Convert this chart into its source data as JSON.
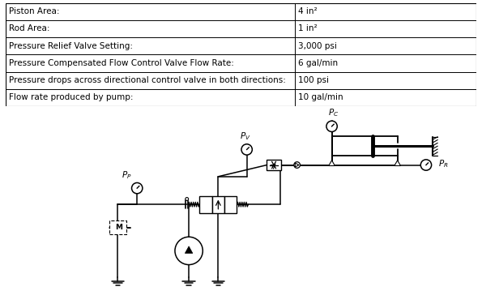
{
  "table_rows": [
    [
      "Piston Area:",
      "4 in²"
    ],
    [
      "Rod Area:",
      "1 in²"
    ],
    [
      "Pressure Relief Valve Setting:",
      "3,000 psi"
    ],
    [
      "Pressure Compensated Flow Control Valve Flow Rate:",
      "6 gal/min"
    ],
    [
      "Pressure drops across directional control valve in both directions:",
      "100 psi"
    ],
    [
      "Flow rate produced by pump:",
      "10 gal/min"
    ]
  ],
  "table_col_split": 0.615,
  "bg_color": "#ffffff",
  "font_size_table": 7.5,
  "font_size_label": 7.5
}
